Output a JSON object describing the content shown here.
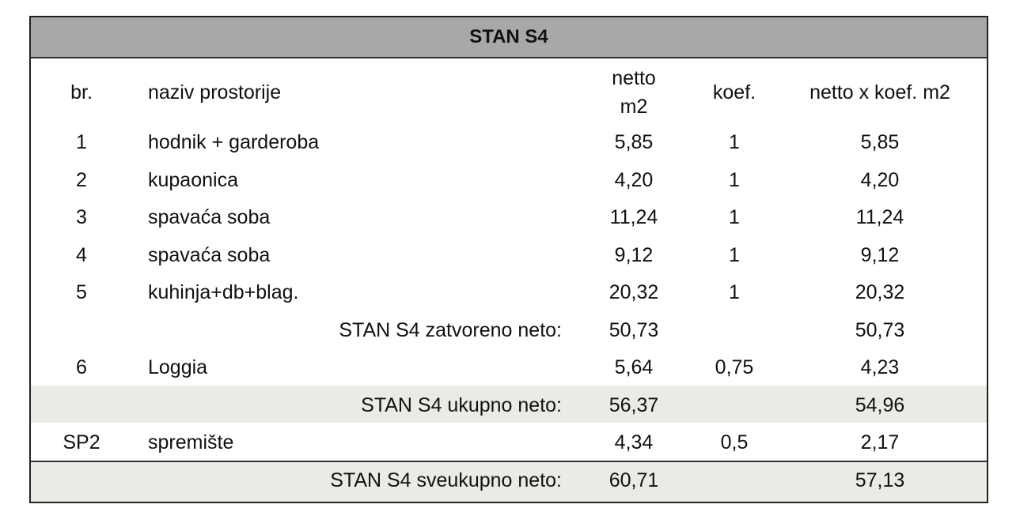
{
  "header": {
    "title": "STAN S4"
  },
  "table": {
    "columns": [
      "br.",
      "naziv prostorije",
      "netto m2",
      "koef.",
      "netto x koef. m2"
    ],
    "rows": [
      {
        "br": "1",
        "name": "hodnik + garderoba",
        "netto": "5,85",
        "koef": "1",
        "total": "5,85"
      },
      {
        "br": "2",
        "name": "kupaonica",
        "netto": "4,20",
        "koef": "1",
        "total": "4,20"
      },
      {
        "br": "3",
        "name": "spavaća soba",
        "netto": "11,24",
        "koef": "1",
        "total": "11,24"
      },
      {
        "br": "4",
        "name": "spavaća soba",
        "netto": "9,12",
        "koef": "1",
        "total": "9,12"
      },
      {
        "br": "5",
        "name": "kuhinja+db+blag.",
        "netto": "20,32",
        "koef": "1",
        "total": "20,32"
      },
      {
        "label": "STAN S4 zatvoreno neto:",
        "netto": "50,73",
        "total": "50,73"
      },
      {
        "br": "6",
        "name": "Loggia",
        "netto": "5,64",
        "koef": "0,75",
        "total": "4,23"
      },
      {
        "label": "STAN S4 ukupno neto:",
        "netto": "56,37",
        "total": "54,96"
      },
      {
        "br": "SP2",
        "name": "spremište",
        "netto": "4,34",
        "koef": "0,5",
        "total": "2,17"
      },
      {
        "label": "STAN S4 sveukupno neto:",
        "netto": "60,71",
        "total": "57,13"
      }
    ]
  }
}
